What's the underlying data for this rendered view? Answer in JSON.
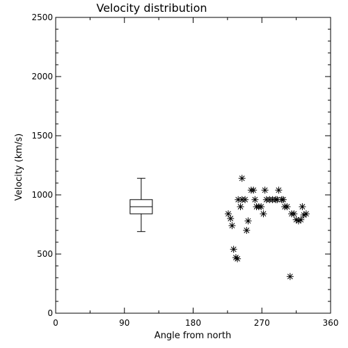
{
  "chart_data": {
    "type": "scatter",
    "title": "Velocity distribution",
    "xlabel": "Angle from north",
    "ylabel": "Velocity (km/s)",
    "xlim": [
      0,
      360
    ],
    "ylim": [
      0,
      2500
    ],
    "x_ticks": [
      0,
      90,
      180,
      270,
      360
    ],
    "y_ticks": [
      0,
      500,
      1000,
      1500,
      2000,
      2500
    ],
    "grid": false,
    "boxplot": {
      "x": 112,
      "whisker_low": 690,
      "q1": 840,
      "median": 900,
      "q3": 960,
      "whisker_high": 1140
    },
    "points": [
      {
        "x": 226,
        "y": 840
      },
      {
        "x": 229,
        "y": 800
      },
      {
        "x": 231,
        "y": 740
      },
      {
        "x": 233,
        "y": 540
      },
      {
        "x": 236,
        "y": 470
      },
      {
        "x": 238,
        "y": 460
      },
      {
        "x": 239,
        "y": 960
      },
      {
        "x": 242,
        "y": 900
      },
      {
        "x": 244,
        "y": 1140
      },
      {
        "x": 244,
        "y": 960
      },
      {
        "x": 248,
        "y": 960
      },
      {
        "x": 250,
        "y": 700
      },
      {
        "x": 252,
        "y": 780
      },
      {
        "x": 256,
        "y": 1040
      },
      {
        "x": 259,
        "y": 1040
      },
      {
        "x": 261,
        "y": 960
      },
      {
        "x": 263,
        "y": 900
      },
      {
        "x": 266,
        "y": 900
      },
      {
        "x": 269,
        "y": 900
      },
      {
        "x": 272,
        "y": 840
      },
      {
        "x": 274,
        "y": 1040
      },
      {
        "x": 276,
        "y": 960
      },
      {
        "x": 280,
        "y": 960
      },
      {
        "x": 284,
        "y": 960
      },
      {
        "x": 288,
        "y": 960
      },
      {
        "x": 290,
        "y": 960
      },
      {
        "x": 292,
        "y": 1040
      },
      {
        "x": 296,
        "y": 960
      },
      {
        "x": 298,
        "y": 960
      },
      {
        "x": 300,
        "y": 900
      },
      {
        "x": 303,
        "y": 900
      },
      {
        "x": 307,
        "y": 310
      },
      {
        "x": 309,
        "y": 840
      },
      {
        "x": 312,
        "y": 840
      },
      {
        "x": 315,
        "y": 790
      },
      {
        "x": 318,
        "y": 780
      },
      {
        "x": 321,
        "y": 790
      },
      {
        "x": 323,
        "y": 900
      },
      {
        "x": 325,
        "y": 830
      },
      {
        "x": 328,
        "y": 840
      }
    ]
  }
}
